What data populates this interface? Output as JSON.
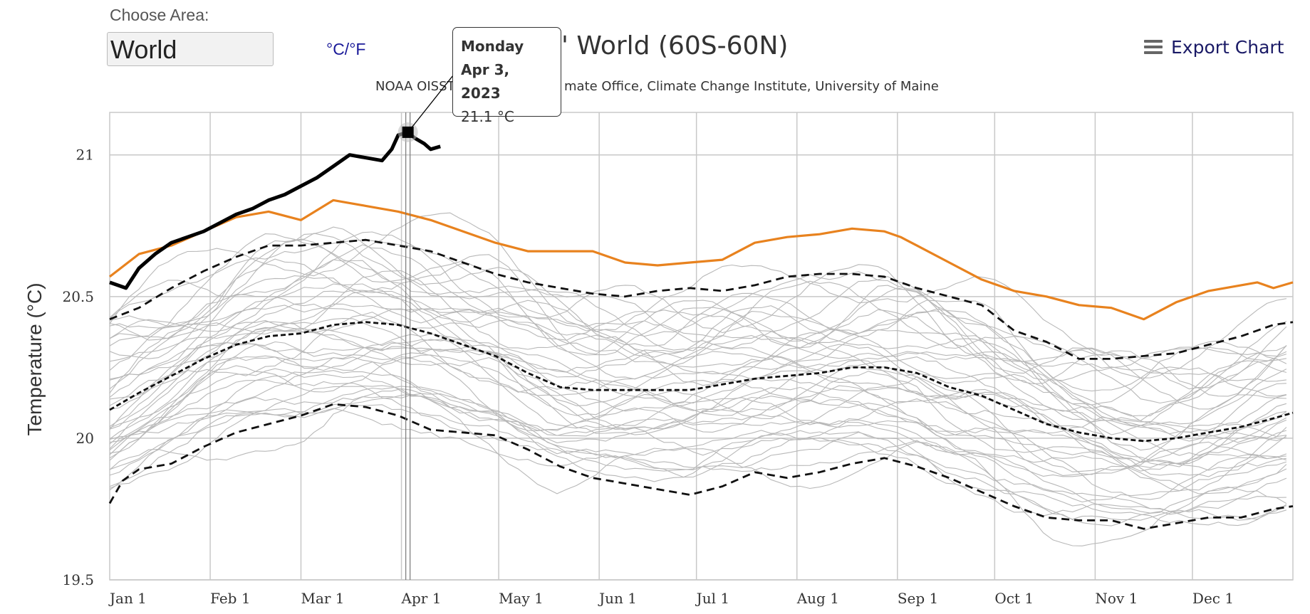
{
  "controls": {
    "choose_area_label": "Choose Area:",
    "area_value": "World",
    "unit_toggle": "°C/°F",
    "export_label": "Export Chart"
  },
  "tooltip": {
    "day": "Monday",
    "date": "Apr 3, 2023",
    "value": "21.1 °C"
  },
  "colors": {
    "current_year": "#000000",
    "previous_year": "#e8821e",
    "mean_and_bands": "#111111",
    "history": "#b8b8b8",
    "grid": "#c8c8c8"
  },
  "chart_data": {
    "type": "line",
    "title_visible_fragment": "' World (60S-60N)",
    "subtitle_visible_fragments": [
      "NOAA OISST",
      "mate Office, Climate Change Institute, University of Maine"
    ],
    "ylabel": "Temperature (°C)",
    "xlabel": "",
    "ylim": [
      19.5,
      21.15
    ],
    "yticks": [
      19.5,
      20,
      20.5,
      21
    ],
    "xlim_day_of_year": [
      1,
      366
    ],
    "x_tick_labels": [
      "Jan 1",
      "Feb 1",
      "Mar 1",
      "Apr 1",
      "May 1",
      "Jun 1",
      "Jul 1",
      "Aug 1",
      "Sep 1",
      "Oct 1",
      "Nov 1",
      "Dec 1"
    ],
    "x_tick_days": [
      1,
      32,
      60,
      91,
      121,
      152,
      182,
      213,
      244,
      274,
      305,
      335
    ],
    "grid": true,
    "legend": "none",
    "series": [
      {
        "style": "thick-black",
        "x": [
          1,
          6,
          10,
          15,
          20,
          25,
          30,
          35,
          40,
          45,
          50,
          55,
          60,
          65,
          70,
          75,
          80,
          85,
          88,
          90,
          93,
          95,
          98,
          100,
          103
        ],
        "y": [
          20.55,
          20.53,
          20.6,
          20.65,
          20.69,
          20.71,
          20.73,
          20.76,
          20.79,
          20.81,
          20.84,
          20.86,
          20.89,
          20.92,
          20.96,
          21.0,
          20.99,
          20.98,
          21.02,
          21.07,
          21.08,
          21.06,
          21.04,
          21.02,
          21.03
        ]
      },
      {
        "style": "orange",
        "x": [
          1,
          10,
          20,
          30,
          40,
          50,
          60,
          70,
          75,
          80,
          90,
          100,
          110,
          120,
          130,
          140,
          150,
          160,
          170,
          180,
          190,
          200,
          210,
          220,
          230,
          240,
          245,
          250,
          260,
          270,
          280,
          290,
          300,
          310,
          320,
          330,
          340,
          350,
          355,
          360,
          366
        ],
        "y": [
          20.57,
          20.65,
          20.68,
          20.73,
          20.78,
          20.8,
          20.77,
          20.84,
          20.83,
          20.82,
          20.8,
          20.77,
          20.73,
          20.69,
          20.66,
          20.66,
          20.66,
          20.62,
          20.61,
          20.62,
          20.63,
          20.69,
          20.71,
          20.72,
          20.74,
          20.73,
          20.71,
          20.68,
          20.62,
          20.56,
          20.52,
          20.5,
          20.47,
          20.46,
          20.42,
          20.48,
          20.52,
          20.54,
          20.55,
          20.53,
          20.55
        ]
      },
      {
        "style": "dashed-upper",
        "x": [
          1,
          10,
          20,
          30,
          40,
          50,
          60,
          70,
          80,
          90,
          100,
          110,
          120,
          130,
          140,
          150,
          160,
          170,
          180,
          190,
          200,
          210,
          220,
          230,
          240,
          250,
          260,
          270,
          280,
          290,
          300,
          310,
          320,
          330,
          340,
          350,
          360,
          366
        ],
        "y": [
          20.42,
          20.46,
          20.53,
          20.59,
          20.64,
          20.68,
          20.68,
          20.69,
          20.7,
          20.68,
          20.66,
          20.62,
          20.58,
          20.55,
          20.53,
          20.51,
          20.5,
          20.52,
          20.53,
          20.52,
          20.54,
          20.57,
          20.58,
          20.58,
          20.57,
          20.53,
          20.5,
          20.47,
          20.38,
          20.34,
          20.28,
          20.28,
          20.29,
          20.3,
          20.33,
          20.36,
          20.4,
          20.41
        ]
      },
      {
        "style": "dashed-mean",
        "x": [
          1,
          10,
          20,
          30,
          40,
          50,
          60,
          70,
          80,
          90,
          100,
          110,
          120,
          130,
          140,
          150,
          160,
          170,
          180,
          190,
          200,
          210,
          220,
          230,
          240,
          250,
          260,
          270,
          280,
          290,
          300,
          310,
          320,
          330,
          340,
          350,
          360,
          366
        ],
        "y": [
          20.1,
          20.16,
          20.22,
          20.28,
          20.33,
          20.36,
          20.37,
          20.4,
          20.41,
          20.4,
          20.37,
          20.33,
          20.29,
          20.23,
          20.18,
          20.17,
          20.17,
          20.17,
          20.17,
          20.19,
          20.21,
          20.22,
          20.23,
          20.25,
          20.25,
          20.23,
          20.18,
          20.15,
          20.1,
          20.05,
          20.02,
          20.0,
          19.99,
          20.0,
          20.02,
          20.04,
          20.07,
          20.09
        ]
      },
      {
        "style": "dashed-lower",
        "x": [
          1,
          5,
          10,
          20,
          30,
          40,
          50,
          60,
          70,
          80,
          90,
          100,
          110,
          120,
          130,
          140,
          150,
          160,
          170,
          180,
          190,
          200,
          210,
          220,
          230,
          240,
          250,
          260,
          270,
          280,
          290,
          300,
          310,
          320,
          330,
          340,
          350,
          360,
          366
        ],
        "y": [
          19.77,
          19.85,
          19.89,
          19.91,
          19.97,
          20.02,
          20.05,
          20.08,
          20.12,
          20.11,
          20.08,
          20.03,
          20.02,
          20.01,
          19.96,
          19.9,
          19.86,
          19.84,
          19.82,
          19.8,
          19.83,
          19.88,
          19.86,
          19.88,
          19.91,
          19.93,
          19.9,
          19.86,
          19.81,
          19.76,
          19.72,
          19.71,
          19.71,
          19.68,
          19.7,
          19.72,
          19.72,
          19.75,
          19.76
        ]
      }
    ]
  }
}
